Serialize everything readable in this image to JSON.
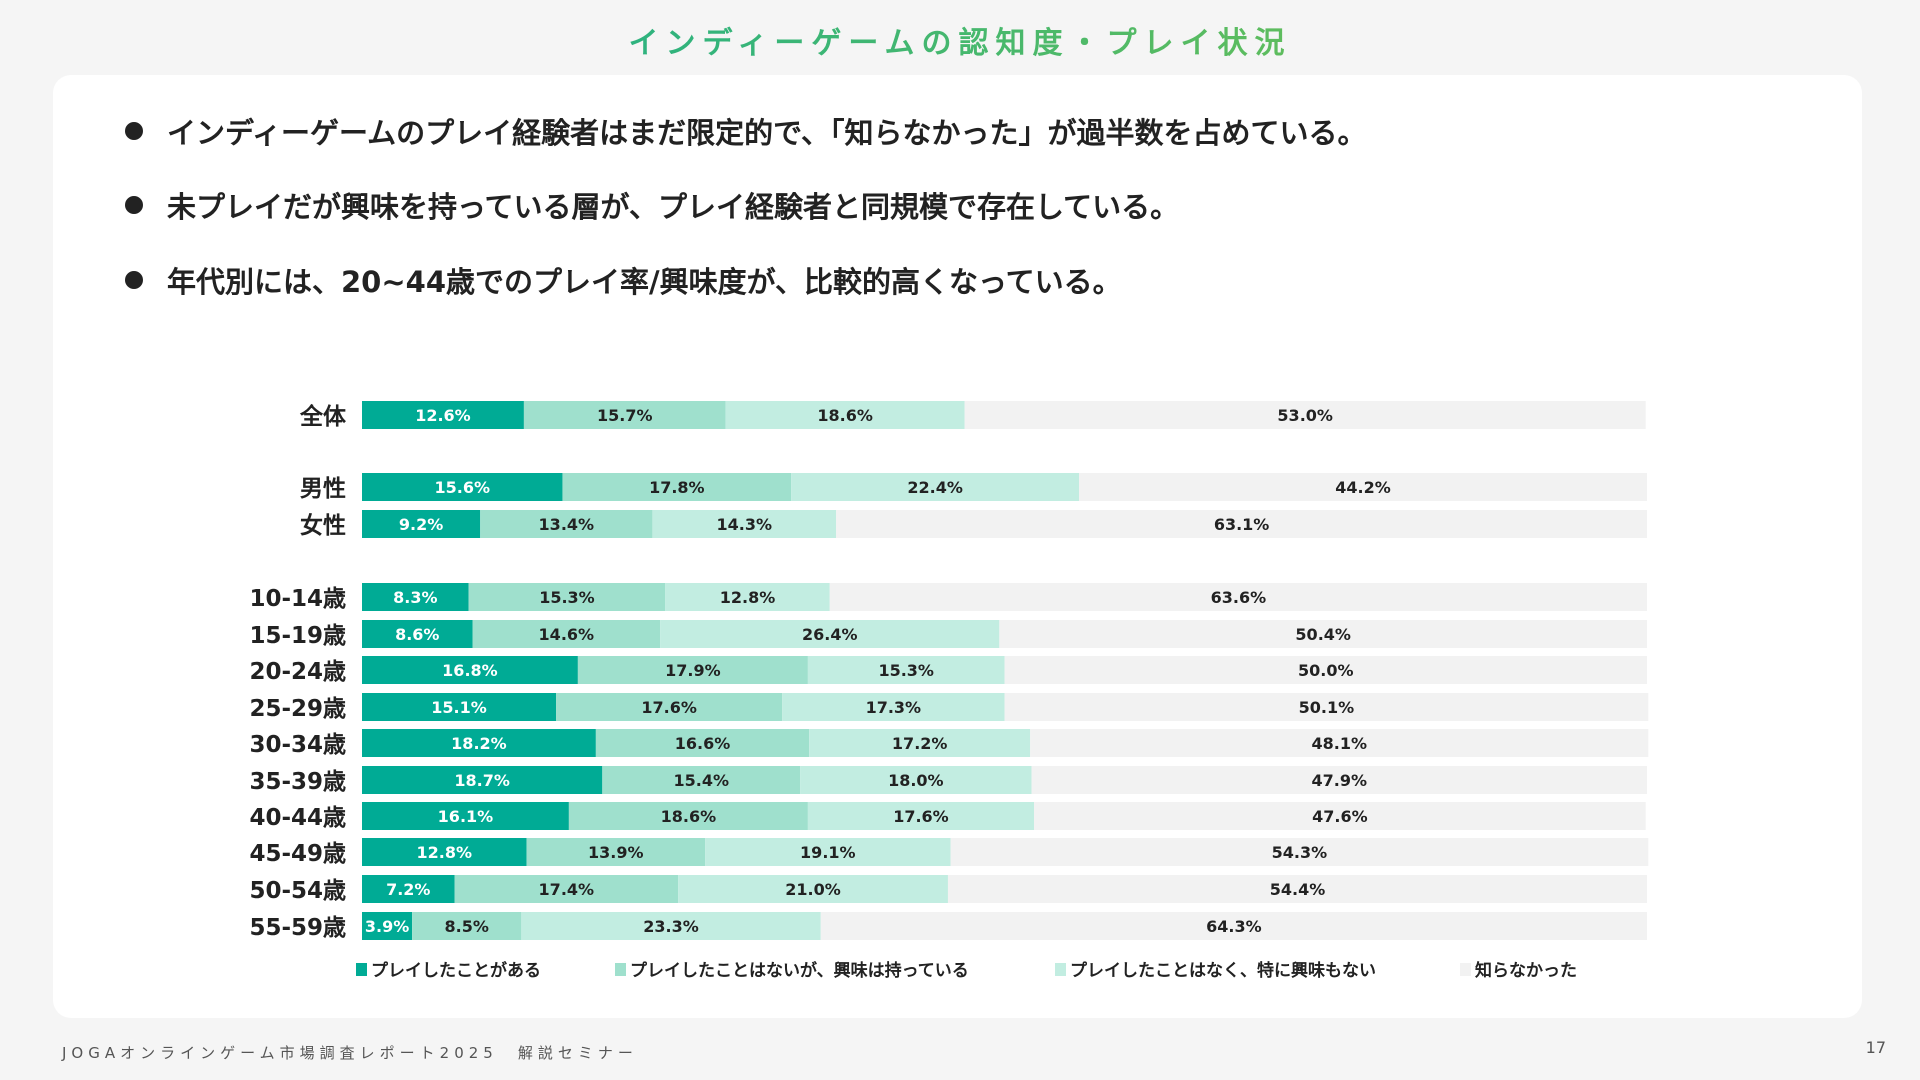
{
  "title": "インディーゲームの認知度・プレイ状況",
  "bullets": [
    "インディーゲームのプレイ経験者はまだ限定的で、「知らなかった」が過半数を占めている。",
    "未プレイだが興味を持っている層が、プレイ経験者と同規模で存在している。",
    "年代別には、20~44歳でのプレイ率/興味度が、比較的高くなっている。"
  ],
  "footer": "JOGAオンラインゲーム市場調査レポート2025　解説セミナー",
  "page_number": "17",
  "chart_data": {
    "type": "bar",
    "orientation": "horizontal",
    "stacked": true,
    "unit": "%",
    "xlim": [
      0,
      100
    ],
    "legend_position": "bottom",
    "categories": [
      "全体",
      "男性",
      "女性",
      "10-14歳",
      "15-19歳",
      "20-24歳",
      "25-29歳",
      "30-34歳",
      "35-39歳",
      "40-44歳",
      "45-49歳",
      "50-54歳",
      "55-59歳"
    ],
    "series": [
      {
        "name": "プレイしたことがある",
        "color": "#00ab95",
        "values": [
          12.6,
          15.6,
          9.2,
          8.3,
          8.6,
          16.8,
          15.1,
          18.2,
          18.7,
          16.1,
          12.8,
          7.2,
          3.9
        ]
      },
      {
        "name": "プレイしたことはないが、興味は持っている",
        "color": "#9fe0cd",
        "values": [
          15.7,
          17.8,
          13.4,
          15.3,
          14.6,
          17.9,
          17.6,
          16.6,
          15.4,
          18.6,
          13.9,
          17.4,
          8.5
        ]
      },
      {
        "name": "プレイしたことはなく、特に興味もない",
        "color": "#c2ede1",
        "values": [
          18.6,
          22.4,
          14.3,
          12.8,
          26.4,
          15.3,
          17.3,
          17.2,
          18.0,
          17.6,
          19.1,
          21.0,
          23.3
        ]
      },
      {
        "name": "知らなかった",
        "color": "#f2f2f2",
        "values": [
          53.0,
          44.2,
          63.1,
          63.6,
          50.4,
          50.0,
          50.1,
          48.1,
          47.9,
          47.6,
          54.3,
          54.4,
          64.3
        ]
      }
    ]
  }
}
